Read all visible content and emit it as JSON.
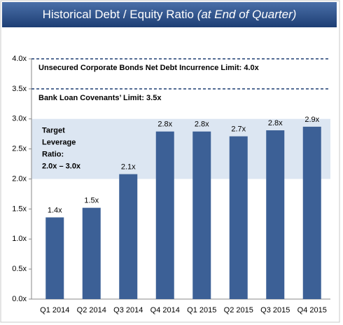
{
  "chart_data": {
    "type": "bar",
    "title": "Historical Debt / Equity Ratio",
    "subtitle": "(at End of Quarter)",
    "categories": [
      "Q1 2014",
      "Q2 2014",
      "Q3 2014",
      "Q4 2014",
      "Q1 2015",
      "Q2 2015",
      "Q3 2015",
      "Q4 2015"
    ],
    "values": [
      1.36,
      1.52,
      2.08,
      2.79,
      2.79,
      2.71,
      2.81,
      2.87
    ],
    "value_labels": [
      "1.4x",
      "1.5x",
      "2.1x",
      "2.8x",
      "2.8x",
      "2.7x",
      "2.8x",
      "2.9x"
    ],
    "color": "#3c6096",
    "ylim": [
      0,
      4
    ],
    "yticks": [
      {
        "value": 0,
        "label": "0.0x"
      },
      {
        "value": 0.5,
        "label": "0.5x"
      },
      {
        "value": 1,
        "label": "1.0x"
      },
      {
        "value": 1.5,
        "label": "1.5x"
      },
      {
        "value": 2,
        "label": "2.0x"
      },
      {
        "value": 2.5,
        "label": "2.5x"
      },
      {
        "value": 3,
        "label": "3.0x"
      },
      {
        "value": 3.5,
        "label": "3.5x"
      },
      {
        "value": 4,
        "label": "4.0x"
      }
    ],
    "reference_lines": [
      {
        "value": 4,
        "label": "Unsecured Corporate Bonds Net Debt Incurrence Limit: 4.0x"
      },
      {
        "value": 3.5,
        "label": "Bank Loan Covenants’ Limit: 3.5x"
      }
    ],
    "target_band": {
      "range": [
        2,
        3
      ],
      "color": "#dce6f2",
      "label_lines": [
        "Target",
        "Leverage",
        "Ratio:",
        "2.0x – 3.0x"
      ]
    }
  }
}
